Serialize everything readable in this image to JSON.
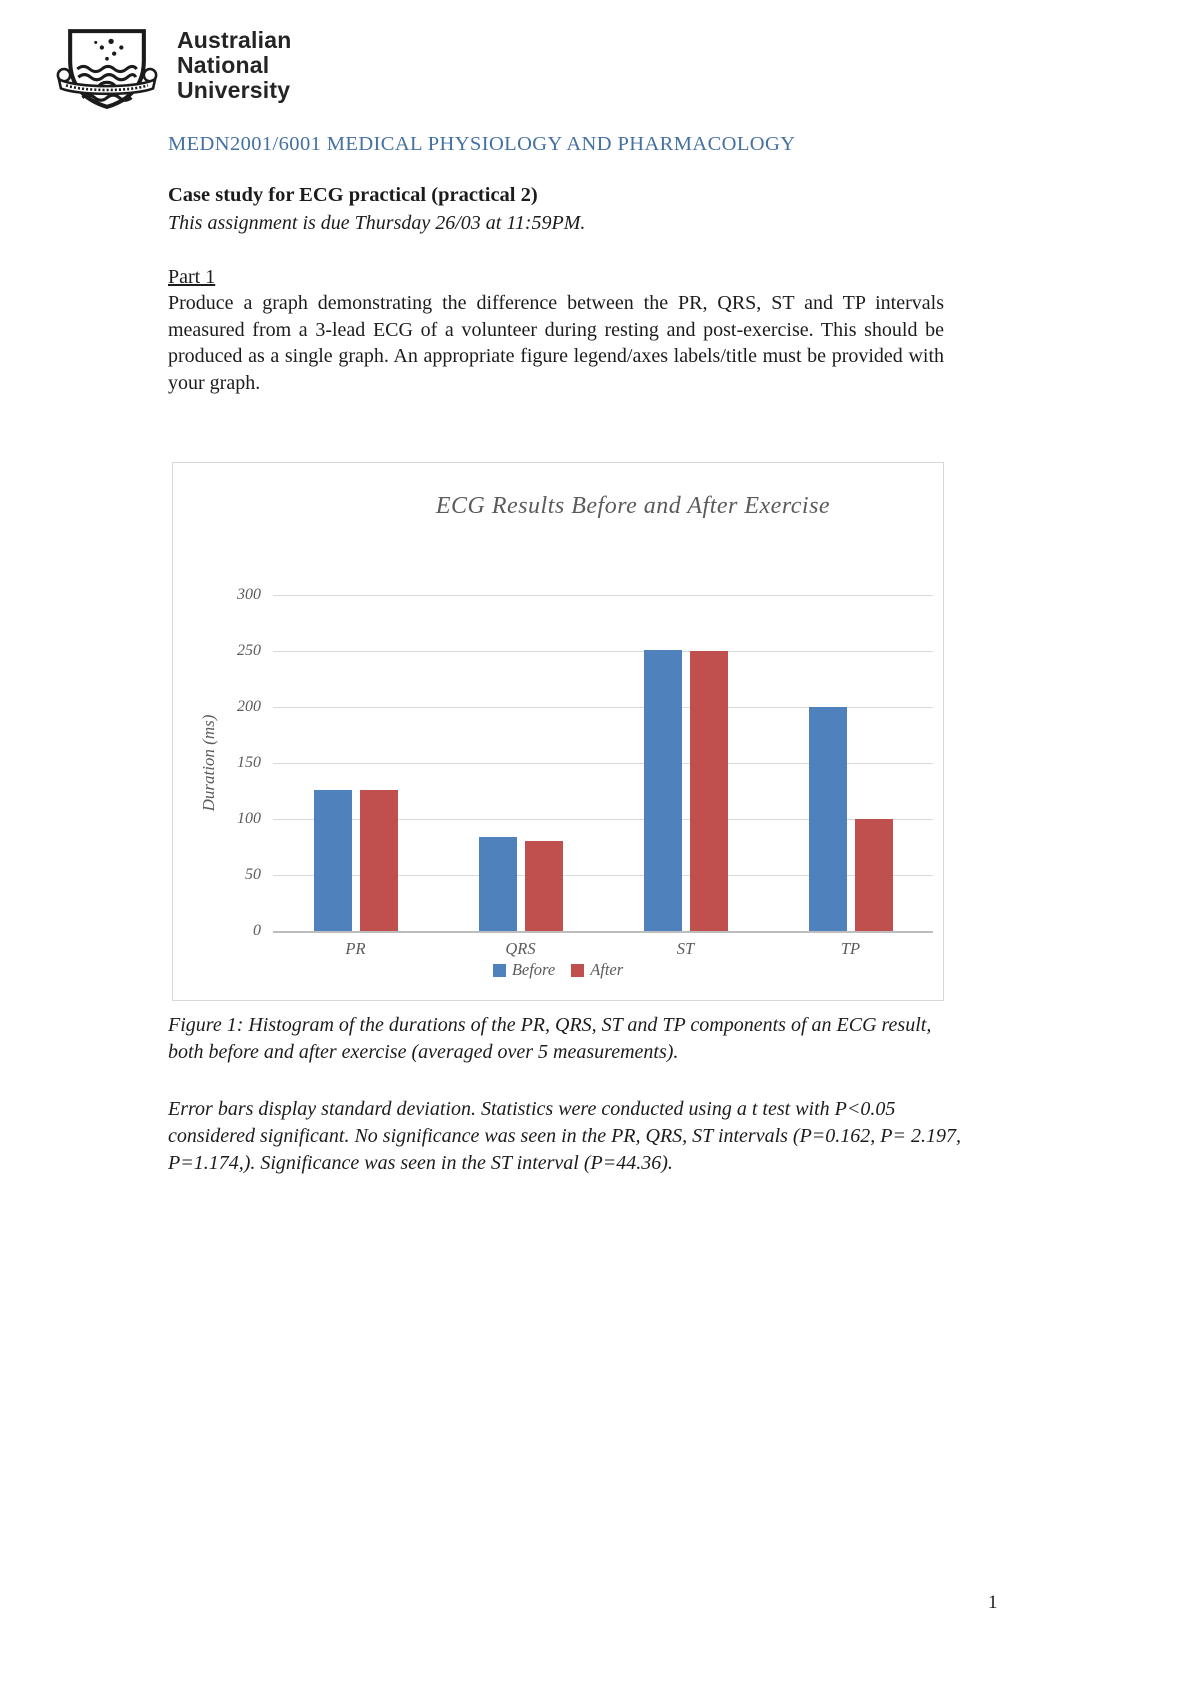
{
  "logo": {
    "line1": "Australian",
    "line2": "National",
    "line3": "University"
  },
  "header": {
    "course": "MEDN2001/6001 MEDICAL PHYSIOLOGY AND PHARMACOLOGY"
  },
  "assignment": {
    "title": "Case study for ECG practical (practical 2)",
    "due": "This assignment is due Thursday 26/03 at 11:59PM.",
    "part_label": "Part 1",
    "part_text": "Produce a graph demonstrating the difference between the PR, QRS, ST and TP intervals measured from a 3-lead ECG of a volunteer during resting and post-exercise. This should be produced as a single graph. An appropriate figure legend/axes labels/title must be provided with your graph."
  },
  "chart_data": {
    "type": "bar",
    "title": "ECG Results Before and After Exercise",
    "categories": [
      "PR",
      "QRS",
      "ST",
      "TP"
    ],
    "series": [
      {
        "name": "Before",
        "color": "#4F81BD",
        "values": [
          126,
          84,
          251,
          200
        ]
      },
      {
        "name": "After",
        "color": "#C0504D",
        "values": [
          126,
          80,
          250,
          100
        ]
      }
    ],
    "xlabel": "",
    "ylabel": "Duration (ms)",
    "ylim": [
      0,
      300
    ],
    "ytick_step": 50,
    "grid": true,
    "legend_position": "bottom"
  },
  "caption": {
    "figure": "Figure 1: Histogram of the durations of the PR, QRS, ST and TP components of an ECG result, both before and after exercise (averaged over 5 measurements).",
    "stats": "Error bars display standard deviation. Statistics were conducted using a t test with P<0.05 considered significant. No significance was seen in the PR, QRS, ST intervals (P=0.162, P= 2.197, P=1.174,). Significance was seen in the ST interval (P=44.36)."
  },
  "page": {
    "number": "1"
  },
  "colors": {
    "heading_blue": "#4470A2",
    "before_bar": "#4F81BD",
    "after_bar": "#C0504D",
    "chart_text_gray": "#5b5b5b"
  }
}
